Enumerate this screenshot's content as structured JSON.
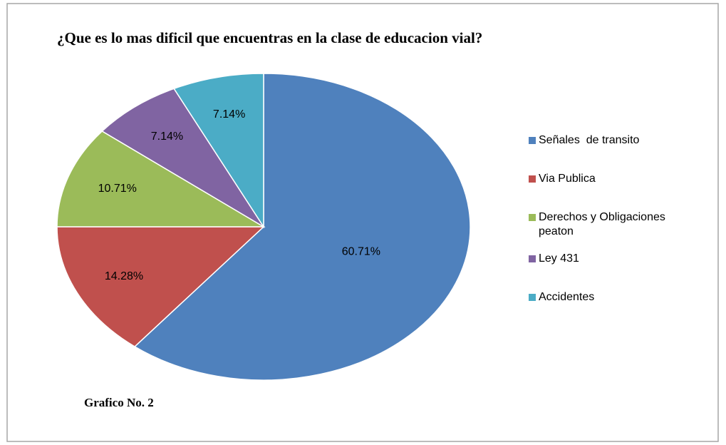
{
  "chart_data": {
    "type": "pie",
    "title": "¿Que es lo mas dificil que encuentras en la clase de educacion vial?",
    "categories": [
      "Señales  de transito",
      "Via Publica",
      "Derechos y Obligaciones peaton",
      "Ley 431",
      "Accidentes"
    ],
    "values": [
      60.71,
      14.28,
      10.71,
      7.14,
      7.14
    ],
    "value_labels": [
      "60.71%",
      "14.28%",
      "10.71%",
      "7.14%",
      "7.14%"
    ],
    "colors": [
      "#4f81bd",
      "#c0504d",
      "#9bbb59",
      "#8064a2",
      "#4bacc6"
    ],
    "legend": "right",
    "footnote": "Grafico No. 2"
  }
}
